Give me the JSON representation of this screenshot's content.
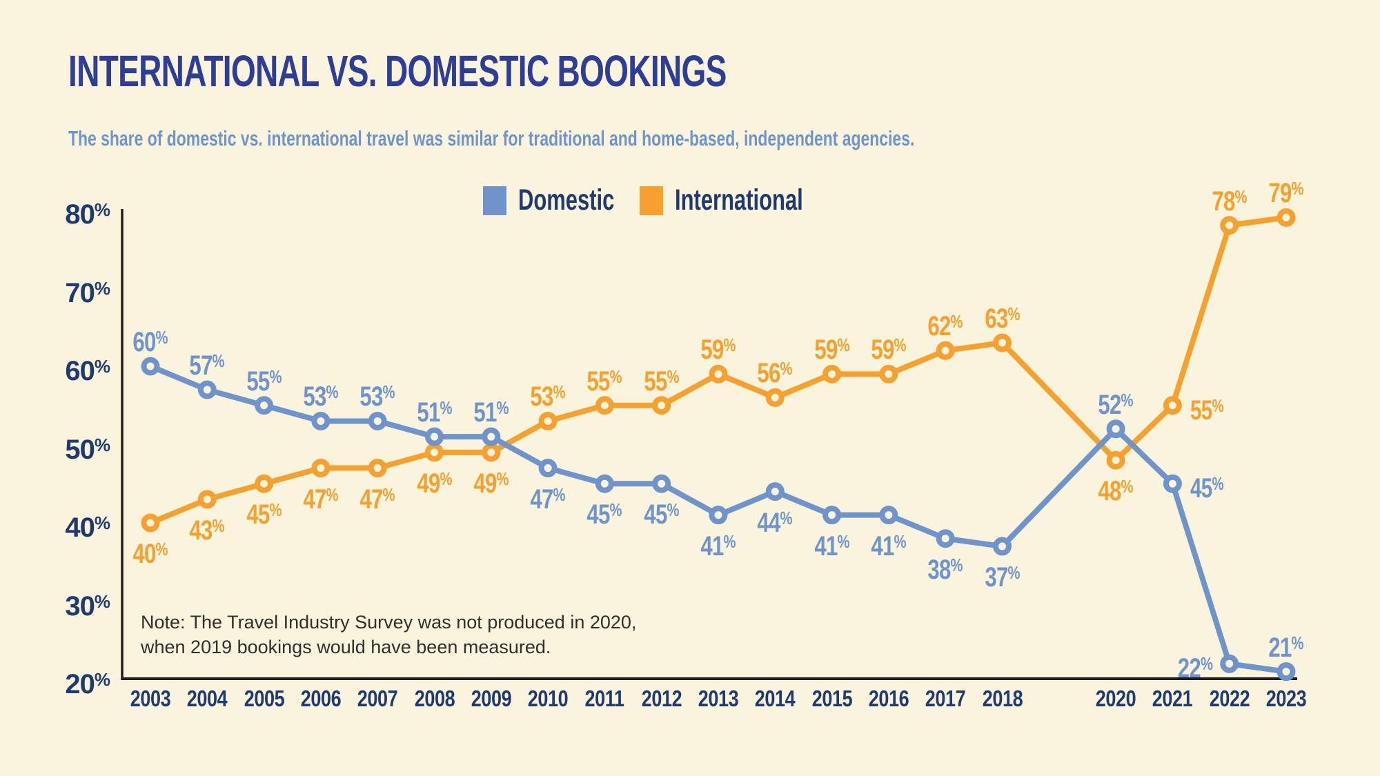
{
  "header": {
    "title": "INTERNATIONAL VS. DOMESTIC BOOKINGS",
    "subtitle": "The share of domestic vs. international travel was similar for traditional and home-based, independent agencies."
  },
  "legend": [
    {
      "label": "Domestic",
      "color": "#6f94cc"
    },
    {
      "label": "International",
      "color": "#f5a02f"
    }
  ],
  "note": {
    "lines": [
      "Note: The Travel Industry Survey was not produced in 2020,",
      "when 2019 bookings would have been measured."
    ]
  },
  "chart_data": {
    "type": "line",
    "x": [
      "2003",
      "2004",
      "2005",
      "2006",
      "2007",
      "2008",
      "2009",
      "2010",
      "2011",
      "2012",
      "2013",
      "2014",
      "2015",
      "2016",
      "2017",
      "2018",
      "2020",
      "2021",
      "2022",
      "2023"
    ],
    "x_gap_years": [
      "2019"
    ],
    "percent_suffix": "%",
    "y_ticks": [
      80,
      70,
      60,
      50,
      40,
      30,
      20
    ],
    "ylim": [
      20,
      80
    ],
    "grid": false,
    "legend_position": "top-center",
    "series": [
      {
        "name": "Domestic",
        "color": "#6f94cc",
        "values": [
          60,
          57,
          55,
          53,
          53,
          51,
          51,
          47,
          45,
          45,
          41,
          44,
          41,
          41,
          38,
          37,
          52,
          45,
          22,
          21
        ],
        "label_pos": [
          "above",
          "above",
          "above",
          "above",
          "above",
          "above",
          "above",
          "below",
          "below",
          "below",
          "below",
          "below",
          "below",
          "below",
          "below",
          "below",
          "above",
          "right",
          "left",
          "above"
        ]
      },
      {
        "name": "International",
        "color": "#f5a02f",
        "values": [
          40,
          43,
          45,
          47,
          47,
          49,
          49,
          53,
          55,
          55,
          59,
          56,
          59,
          59,
          62,
          63,
          48,
          55,
          78,
          79
        ],
        "label_pos": [
          "below",
          "below",
          "below",
          "below",
          "below",
          "below",
          "below",
          "above",
          "above",
          "above",
          "above",
          "above",
          "above",
          "above",
          "above",
          "above",
          "below",
          "right",
          "above",
          "above"
        ]
      }
    ]
  },
  "colors": {
    "background": "#fbf4dd",
    "title": "#2e3d96",
    "subtitle": "#6f94cc",
    "axis_text": "#1e3a6e",
    "axis_line": "#1d1d1b",
    "note_text": "#2f2f2c"
  }
}
